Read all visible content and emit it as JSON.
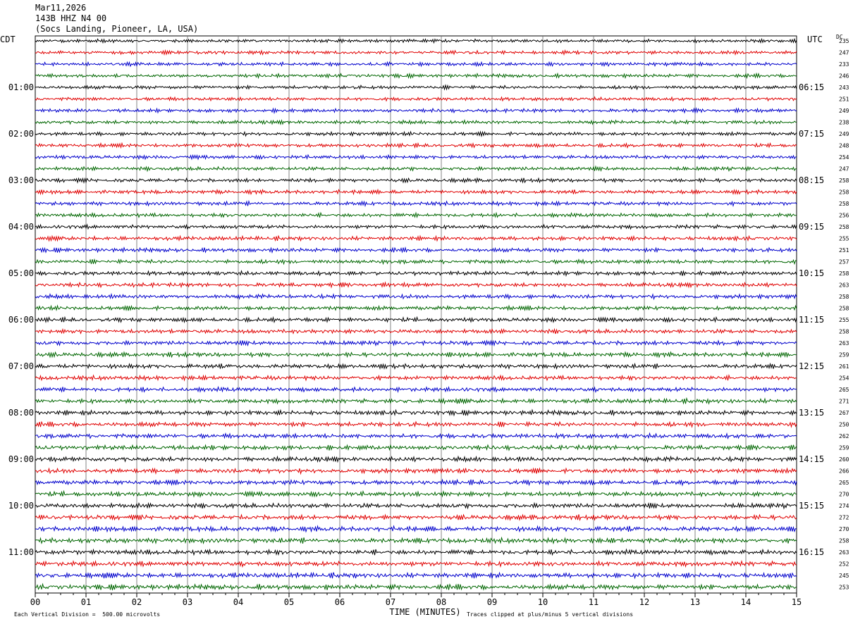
{
  "header": {
    "date": "Mar11,2026",
    "station": "143B HHZ N4 00",
    "location": "(Socs Landing, Pioneer, LA, USA)"
  },
  "left_timezone": "CDT",
  "right_timezone": "UTC",
  "dc_label": "DC",
  "footer": {
    "scale_note": "Each Vertical Division =  500.00 microvolts",
    "clip_note": "Traces clipped at plus/minus 5 vertical divisions"
  },
  "colors": {
    "black": "#000000",
    "red": "#e00000",
    "blue": "#0000cc",
    "green": "#006600"
  },
  "chart_data": {
    "type": "line",
    "title": "143B HHZ N4 00",
    "xlabel": "TIME (MINUTES)",
    "ylabel": "",
    "x_ticks": [
      "00",
      "01",
      "02",
      "03",
      "04",
      "05",
      "06",
      "07",
      "08",
      "09",
      "10",
      "11",
      "12",
      "13",
      "14",
      "15"
    ],
    "xlim": [
      0,
      15
    ],
    "trace_minutes": 15,
    "trace_colors": [
      "black",
      "red",
      "blue",
      "green"
    ],
    "left_hour_labels": [
      "01:00",
      "02:00",
      "03:00",
      "04:00",
      "05:00",
      "06:00",
      "07:00",
      "08:00",
      "09:00",
      "10:00",
      "11:00"
    ],
    "right_hour_labels": [
      "06:15",
      "07:15",
      "08:15",
      "09:15",
      "10:15",
      "11:15",
      "12:15",
      "13:15",
      "14:15",
      "15:15",
      "16:15"
    ],
    "dc_offsets": [
      235,
      247,
      233,
      246,
      243,
      251,
      249,
      238,
      249,
      248,
      254,
      247,
      258,
      258,
      258,
      256,
      258,
      255,
      251,
      257,
      258,
      263,
      258,
      258,
      255,
      258,
      263,
      259,
      261,
      254,
      265,
      271,
      267,
      250,
      262,
      259,
      260,
      266,
      265,
      270,
      274,
      272,
      270,
      258,
      263,
      252,
      245,
      253
    ]
  }
}
